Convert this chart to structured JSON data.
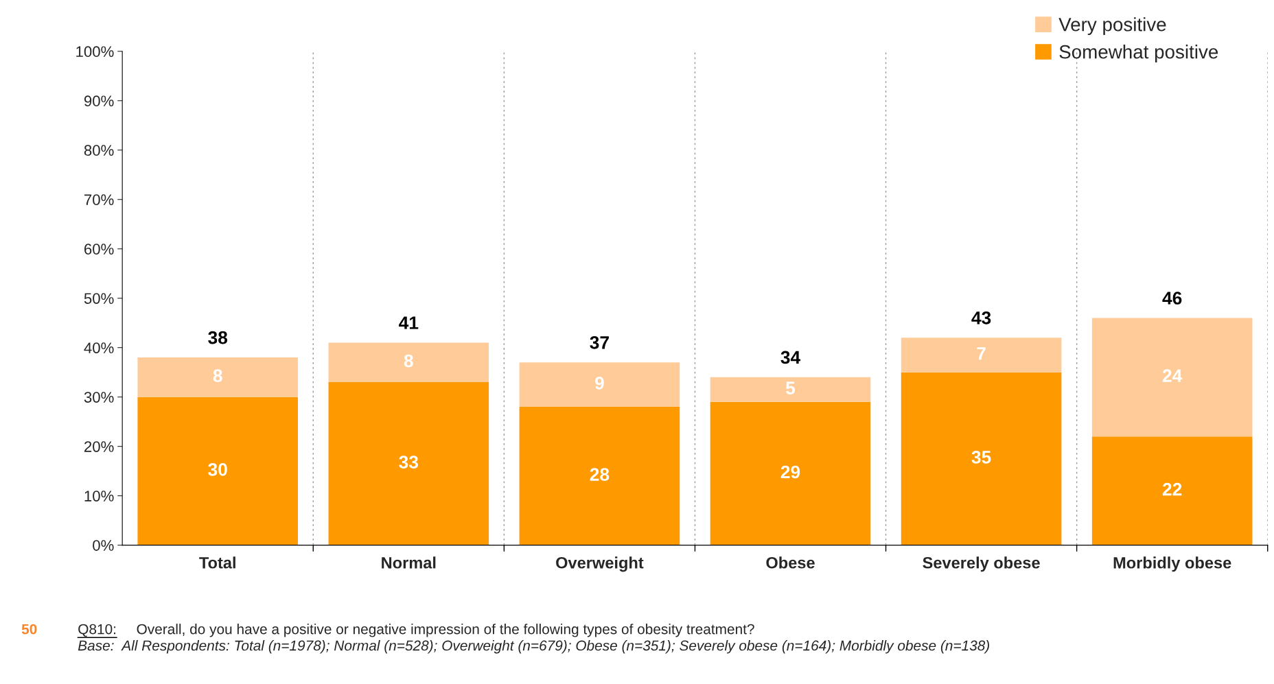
{
  "chart_data": {
    "type": "bar",
    "stacked": true,
    "categories": [
      "Total",
      "Normal",
      "Overweight",
      "Obese",
      "Severely obese",
      "Morbidly obese"
    ],
    "series": [
      {
        "name": "Somewhat positive",
        "color": "#ff9900",
        "values": [
          30,
          33,
          28,
          29,
          35,
          22
        ]
      },
      {
        "name": "Very positive",
        "color": "#ffcc99",
        "values": [
          8,
          8,
          9,
          5,
          7,
          24
        ]
      }
    ],
    "data_labels": true,
    "totals": [
      "38",
      "41",
      "37",
      "34",
      "43",
      "46"
    ],
    "ylim": [
      0,
      100
    ],
    "yticks": [
      {
        "value": 0,
        "label": "0%"
      },
      {
        "value": 10,
        "label": "10%"
      },
      {
        "value": 20,
        "label": "20%"
      },
      {
        "value": 30,
        "label": "30%"
      },
      {
        "value": 40,
        "label": "40%"
      },
      {
        "value": 50,
        "label": "50%"
      },
      {
        "value": 60,
        "label": "60%"
      },
      {
        "value": 70,
        "label": "70%"
      },
      {
        "value": 80,
        "label": "80%"
      },
      {
        "value": 90,
        "label": "90%"
      },
      {
        "value": 100,
        "label": "100%"
      }
    ],
    "grid": false,
    "legend": "top right",
    "annotations": [
      "Q810:",
      "Overall, do you have a positive or negative impression of the following types of obesity treatment?",
      "Base:  All Respondents: Total (n=1978); Normal (n=528); Overweight (n=679); Obese (n=351); Severely obese (n=164); Morbidly obese (n=138)",
      "50"
    ]
  }
}
